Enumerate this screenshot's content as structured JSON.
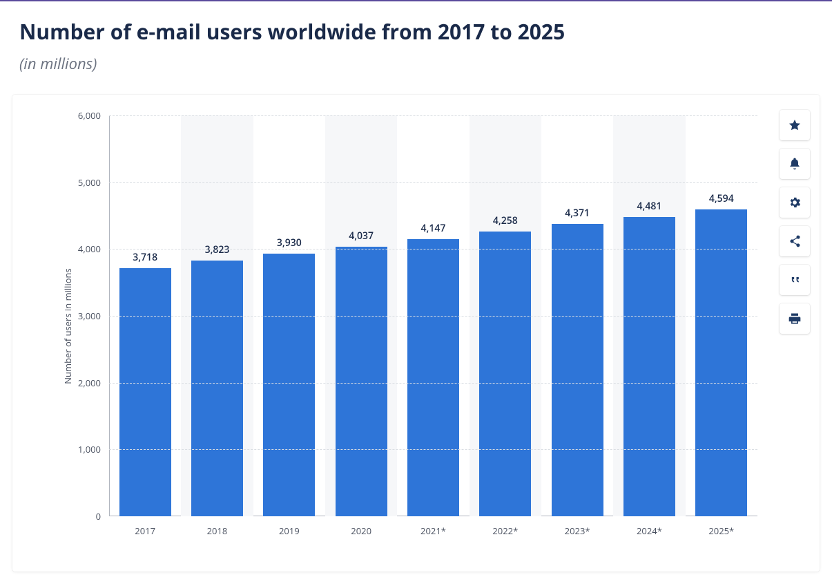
{
  "header": {
    "title": "Number of e-mail users worldwide from 2017 to 2025",
    "subtitle": "(in millions)"
  },
  "chart": {
    "type": "bar",
    "ylabel": "Number of users in millions",
    "ylim": [
      0,
      6000
    ],
    "ytick_step": 1000,
    "ytick_labels": [
      "0",
      "1,000",
      "2,000",
      "3,000",
      "4,000",
      "5,000",
      "6,000"
    ],
    "categories": [
      "2017",
      "2018",
      "2019",
      "2020",
      "2021*",
      "2022*",
      "2023*",
      "2024*",
      "2025*"
    ],
    "values": [
      3718,
      3823,
      3930,
      4037,
      4147,
      4258,
      4371,
      4481,
      4594
    ],
    "value_labels": [
      "3,718",
      "3,823",
      "3,930",
      "4,037",
      "4,147",
      "4,258",
      "4,371",
      "4,481",
      "4,594"
    ],
    "bar_color": "#2e75d8",
    "grid_color": "#d9dde2",
    "alt_band_color": "#f6f7f9",
    "background_color": "#ffffff",
    "axis_color": "#b0b6bf",
    "title_color": "#1a2a49",
    "label_color": "#4a5160",
    "bar_width_ratio": 0.72,
    "value_fontsize": 14,
    "tick_fontsize": 13,
    "title_fontsize": 30
  },
  "toolbar": {
    "icon_color": "#1f3b66",
    "buttons": [
      "favorite",
      "notify",
      "settings",
      "share",
      "cite",
      "print"
    ]
  }
}
